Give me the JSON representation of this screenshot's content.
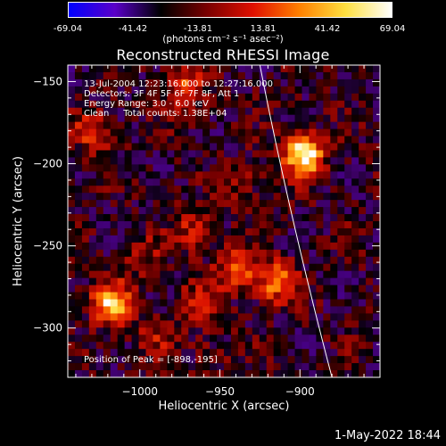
{
  "colorbar": {
    "ticks": [
      "-69.04",
      "-41.42",
      "-13.81",
      "13.81",
      "41.42",
      "69.04"
    ],
    "units": "(photons cm⁻² s⁻¹ asec⁻²)",
    "colors": [
      "#0000ff",
      "#5a00c8",
      "#000000",
      "#7a0000",
      "#e01000",
      "#ff8000",
      "#ffe040",
      "#ffffff"
    ]
  },
  "title": "Reconstructed RHESSI Image",
  "annotations": {
    "time_range": "13-Jul-2004 12:23:16.000 to 12:27:16.000",
    "detectors": "Detectors: 3F 4F 5F 6F 7F 8F, Att 1",
    "energy": "Energy Range: 3.0 - 6.0 keV",
    "method": "Clean     Total counts: 1.38E+04",
    "peak": "Position of Peak = [-898,-195]"
  },
  "footer": {
    "date": "1-May-2022 18:44"
  },
  "chart_data": {
    "type": "heatmap",
    "title": "Reconstructed RHESSI Image",
    "xlabel": "Heliocentric X (arcsec)",
    "ylabel": "Heliocentric Y (arcsec)",
    "xlim": [
      -1045,
      -850
    ],
    "ylim": [
      -330,
      -140
    ],
    "xticks": [
      -1000,
      -950,
      -900
    ],
    "xtick_labels": [
      "−1000",
      "−950",
      "−900"
    ],
    "yticks": [
      -150,
      -200,
      -250,
      -300
    ],
    "ytick_labels": [
      "−150",
      "−200",
      "−250",
      "−300"
    ],
    "colorbar_range": [
      -69.04,
      69.04
    ],
    "peak": [
      -898,
      -195
    ],
    "sources": [
      {
        "x": -898,
        "y": -195,
        "peak": 69
      },
      {
        "x": -1018,
        "y": -285,
        "peak": 55
      },
      {
        "x": -972,
        "y": -155,
        "peak": 35
      },
      {
        "x": -1028,
        "y": -180,
        "peak": 30
      },
      {
        "x": -915,
        "y": -272,
        "peak": 45
      },
      {
        "x": -940,
        "y": -265,
        "peak": 38
      },
      {
        "x": -965,
        "y": -240,
        "peak": 28
      },
      {
        "x": -965,
        "y": -285,
        "peak": 24
      },
      {
        "x": -1000,
        "y": -255,
        "peak": 20
      },
      {
        "x": -990,
        "y": -305,
        "peak": 18
      },
      {
        "x": -955,
        "y": -315,
        "peak": 12
      },
      {
        "x": -935,
        "y": -210,
        "peak": 20
      }
    ],
    "limb_curve": [
      [
        -925,
        -140
      ],
      [
        -907,
        -230
      ],
      [
        -880,
        -330
      ]
    ],
    "grid": false
  }
}
